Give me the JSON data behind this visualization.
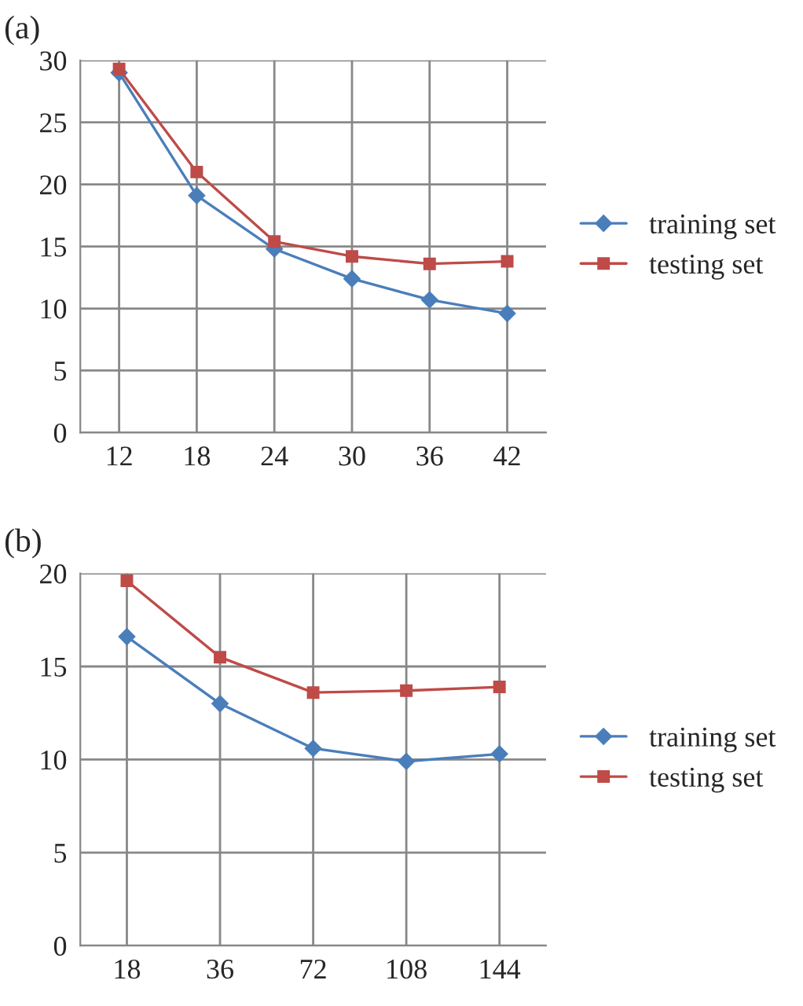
{
  "chart_data": [
    {
      "type": "line",
      "title": "(a)",
      "categories": [
        "12",
        "18",
        "24",
        "30",
        "36",
        "42"
      ],
      "ylim": [
        0,
        30
      ],
      "yticks": [
        0,
        5,
        10,
        15,
        20,
        25,
        30
      ],
      "grid": true,
      "legend": "right",
      "series": [
        {
          "name": "training set",
          "color": "#4a7ebb",
          "marker": "diamond",
          "values": [
            29.0,
            19.1,
            14.8,
            12.4,
            10.7,
            9.6
          ]
        },
        {
          "name": "testing set",
          "color": "#be4b48",
          "marker": "square",
          "values": [
            29.3,
            21.0,
            15.4,
            14.2,
            13.6,
            13.8
          ]
        }
      ]
    },
    {
      "type": "line",
      "title": "(b)",
      "categories": [
        "18",
        "36",
        "72",
        "108",
        "144"
      ],
      "ylim": [
        0,
        20
      ],
      "yticks": [
        0,
        5,
        10,
        15,
        20
      ],
      "grid": true,
      "legend": "right",
      "series": [
        {
          "name": "training set",
          "color": "#4a7ebb",
          "marker": "diamond",
          "values": [
            16.6,
            13.0,
            10.6,
            9.9,
            10.3
          ]
        },
        {
          "name": "testing set",
          "color": "#be4b48",
          "marker": "square",
          "values": [
            19.6,
            15.5,
            13.6,
            13.7,
            13.9
          ]
        }
      ]
    }
  ]
}
